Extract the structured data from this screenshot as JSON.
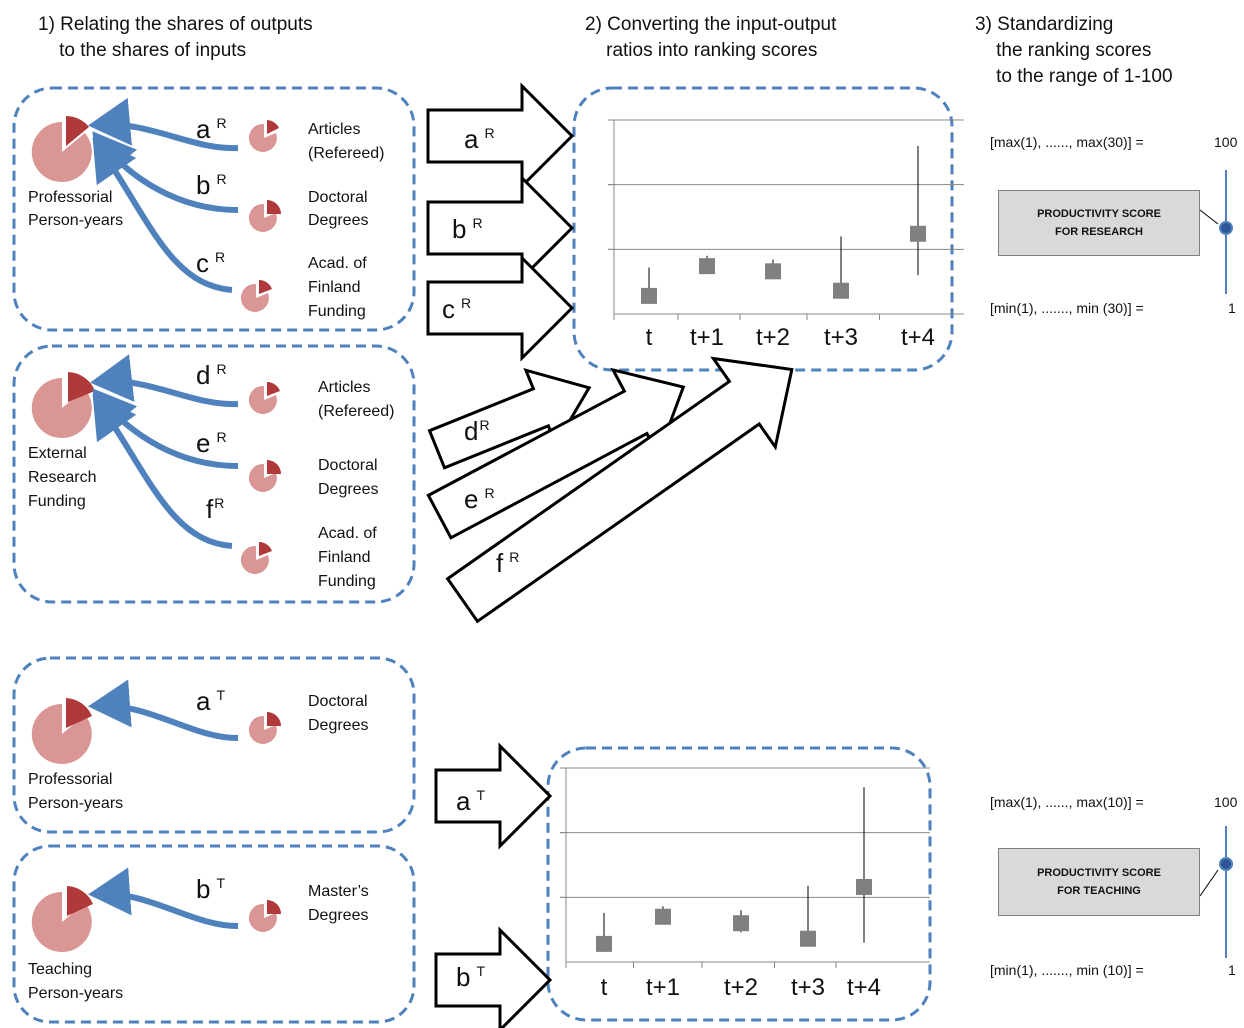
{
  "headers": {
    "step1": [
      "1) Relating the shares of outputs",
      "    to the shares of inputs"
    ],
    "step2": [
      "2) Converting the input-output",
      "    ratios into ranking scores"
    ],
    "step3": [
      "3) Standardizing",
      "    the ranking scores",
      "    to the range of 1-100"
    ]
  },
  "research": {
    "group1": {
      "input": [
        "Professorial",
        "Person-years"
      ],
      "links": [
        {
          "letter": "a",
          "sup": "R",
          "output": [
            "Articles",
            "(Refereed)"
          ]
        },
        {
          "letter": "b",
          "sup": "R",
          "output": [
            "Doctoral",
            "Degrees"
          ]
        },
        {
          "letter": "c",
          "sup": "R",
          "output": [
            "Acad. of",
            "Finland",
            "Funding"
          ]
        }
      ]
    },
    "group2": {
      "input": [
        "External",
        "Research",
        "Funding"
      ],
      "links": [
        {
          "letter": "d",
          "sup": "R",
          "output": [
            "Articles",
            "(Refereed)"
          ]
        },
        {
          "letter": "e",
          "sup": "R",
          "output": [
            "Doctoral",
            "Degrees"
          ]
        },
        {
          "letter": "f",
          "sup": "R",
          "output": [
            "Acad. of",
            "Finland",
            "Funding"
          ]
        }
      ]
    },
    "arrows": [
      {
        "letter": "a",
        "sup": "R"
      },
      {
        "letter": "b",
        "sup": "R"
      },
      {
        "letter": "c",
        "sup": "R"
      },
      {
        "letter": "d",
        "sup": "R"
      },
      {
        "letter": "e",
        "sup": "R"
      },
      {
        "letter": "f",
        "sup": "R"
      }
    ],
    "scale_max": "[max(1), ......, max(30)] =",
    "scale_max_value": "100",
    "scale_min": "[min(1), ......., min (30)] =",
    "scale_min_value": "1",
    "score_box": [
      "PRODUCTIVITY SCORE",
      "FOR RESEARCH"
    ]
  },
  "teaching": {
    "group1": {
      "input": [
        "Professorial",
        "Person-years"
      ],
      "links": [
        {
          "letter": "a",
          "sup": "T",
          "output": [
            "Doctoral",
            "Degrees"
          ]
        }
      ]
    },
    "group2": {
      "input": [
        "Teaching",
        "Person-years"
      ],
      "links": [
        {
          "letter": "b",
          "sup": "T",
          "output": [
            "Master’s",
            "Degrees"
          ]
        }
      ]
    },
    "arrows": [
      {
        "letter": "a",
        "sup": "T"
      },
      {
        "letter": "b",
        "sup": "T"
      }
    ],
    "scale_max": "[max(1), ......, max(10)] =",
    "scale_max_value": "100",
    "scale_min": "[min(1), ......., min (10)] =",
    "scale_min_value": "1",
    "score_box": [
      "PRODUCTIVITY SCORE",
      "FOR TEACHING"
    ]
  },
  "colors": {
    "dashed_border": "#4f81bd",
    "curve_arrow": "#4f81bd",
    "pie_light": "#d99694",
    "pie_dark": "#b03a3a",
    "marker": "#808080",
    "box_fill": "#d9d9d9",
    "knob": "#2e5597"
  },
  "chart_data": [
    {
      "type": "scatter",
      "name": "research",
      "categories": [
        "t",
        "t+1",
        "t+2",
        "t+3",
        "t+4"
      ],
      "values": [
        0.14,
        0.37,
        0.33,
        0.18,
        0.62
      ],
      "low": [
        0.08,
        0.32,
        0.27,
        0.14,
        0.3
      ],
      "high": [
        0.36,
        0.45,
        0.42,
        0.6,
        1.3
      ],
      "ylim": [
        0,
        1.5
      ],
      "grid": true
    },
    {
      "type": "scatter",
      "name": "teaching",
      "categories": [
        "t",
        "t+1",
        "t+2",
        "t+3",
        "t+4"
      ],
      "values": [
        0.14,
        0.35,
        0.3,
        0.18,
        0.58
      ],
      "low": [
        0.08,
        0.29,
        0.23,
        0.13,
        0.15
      ],
      "high": [
        0.38,
        0.43,
        0.4,
        0.59,
        1.35
      ],
      "ylim": [
        0,
        1.5
      ],
      "grid": true
    }
  ]
}
